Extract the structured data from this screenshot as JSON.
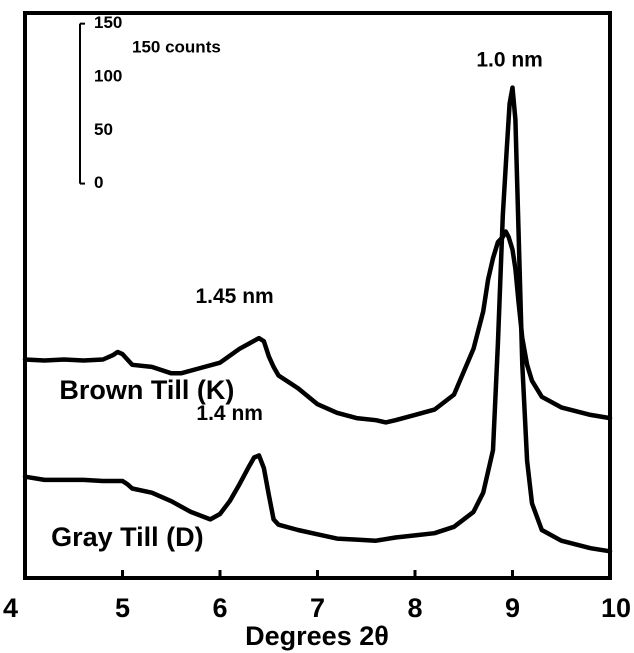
{
  "chart_data": {
    "type": "line",
    "xlabel": "Degrees 2θ",
    "xlim": [
      4,
      10
    ],
    "ylim": [
      0,
      530
    ],
    "x_ticks": [
      4,
      5,
      6,
      7,
      8,
      9,
      10
    ],
    "x_tick_labels": [
      "4",
      "5",
      "6",
      "7",
      "8",
      "9",
      "10"
    ],
    "scale_bar": {
      "unit_label": "150 counts",
      "ticks": [
        0,
        50,
        100,
        150
      ],
      "tick_labels": [
        "0",
        "50",
        "100",
        "150"
      ],
      "baseline": 370
    },
    "series": [
      {
        "name": "Brown Till (K)",
        "x": [
          4.0,
          4.2,
          4.4,
          4.6,
          4.8,
          4.9,
          4.95,
          5.0,
          5.1,
          5.3,
          5.5,
          5.6,
          5.8,
          6.0,
          6.2,
          6.3,
          6.4,
          6.45,
          6.5,
          6.55,
          6.6,
          6.8,
          7.0,
          7.2,
          7.4,
          7.6,
          7.7,
          7.8,
          8.0,
          8.2,
          8.4,
          8.6,
          8.7,
          8.75,
          8.8,
          8.85,
          8.9,
          8.93,
          8.96,
          9.0,
          9.03,
          9.06,
          9.1,
          9.15,
          9.2,
          9.3,
          9.5,
          9.8,
          10.0
        ],
        "y": [
          205,
          204,
          205,
          204,
          205,
          209,
          212,
          210,
          200,
          198,
          192,
          192,
          197,
          202,
          215,
          220,
          225,
          222,
          208,
          198,
          190,
          178,
          163,
          155,
          150,
          148,
          146,
          148,
          153,
          158,
          172,
          215,
          250,
          280,
          300,
          315,
          320,
          325,
          320,
          308,
          290,
          260,
          225,
          200,
          185,
          170,
          160,
          153,
          150
        ]
      },
      {
        "name": "Gray Till (D)",
        "x": [
          4.0,
          4.2,
          4.4,
          4.6,
          4.8,
          5.0,
          5.05,
          5.1,
          5.3,
          5.5,
          5.7,
          5.9,
          6.0,
          6.1,
          6.2,
          6.3,
          6.35,
          6.4,
          6.45,
          6.5,
          6.55,
          6.6,
          6.8,
          7.0,
          7.2,
          7.4,
          7.6,
          7.8,
          8.0,
          8.2,
          8.4,
          8.6,
          8.7,
          8.8,
          8.85,
          8.9,
          8.94,
          8.97,
          9.0,
          9.03,
          9.06,
          9.1,
          9.15,
          9.2,
          9.3,
          9.5,
          9.8,
          10.0
        ],
        "y": [
          95,
          92,
          92,
          92,
          91,
          91,
          88,
          84,
          80,
          72,
          62,
          55,
          60,
          72,
          88,
          105,
          113,
          115,
          103,
          78,
          55,
          50,
          45,
          41,
          37,
          36,
          35,
          38,
          40,
          42,
          48,
          62,
          80,
          120,
          220,
          340,
          400,
          445,
          460,
          430,
          330,
          200,
          110,
          70,
          45,
          35,
          28,
          25
        ]
      }
    ],
    "annotations": [
      {
        "text": "1.0 nm",
        "x": 8.97,
        "y": 480
      },
      {
        "text": "1.45 nm",
        "x": 6.15,
        "y": 258
      },
      {
        "text": "1.4 nm",
        "x": 6.1,
        "y": 148
      },
      {
        "text": "Brown Till (K)",
        "x": 5.25,
        "y": 168
      },
      {
        "text": "Gray Till (D)",
        "x": 5.05,
        "y": 30
      }
    ]
  }
}
